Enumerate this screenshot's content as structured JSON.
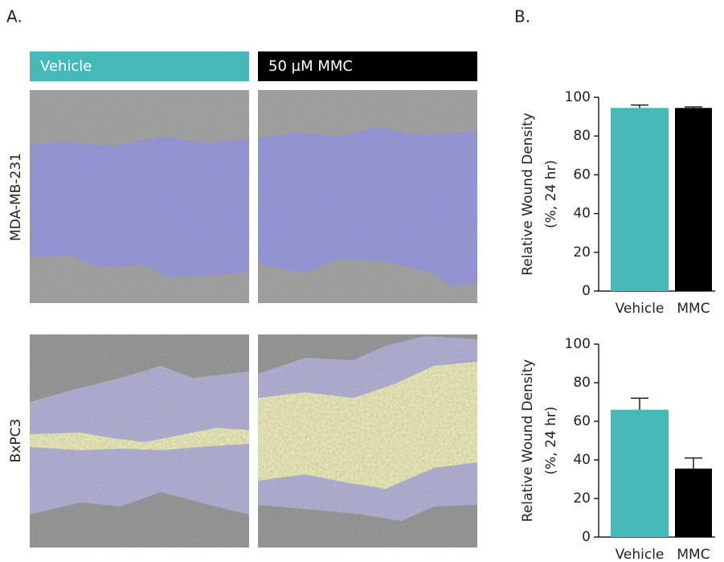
{
  "panel_a": {
    "label": "A.",
    "columns": [
      "Vehicle",
      "50 µM MMC"
    ],
    "rows": [
      "MDA-MB-231",
      "BxPC3"
    ]
  },
  "panel_b": {
    "label": "B."
  },
  "chart_data": [
    {
      "type": "bar",
      "categories": [
        "Vehicle",
        "MMC"
      ],
      "values": [
        94.5,
        94.5
      ],
      "errors": [
        1.5,
        0.5
      ],
      "colors": [
        "#45b8b8",
        "#000000"
      ],
      "ylabel": [
        "Relative Wound Density",
        "(%, 24 hr)"
      ],
      "ylim": [
        0,
        100
      ],
      "yticks": [
        0,
        20,
        40,
        60,
        80,
        100
      ]
    },
    {
      "type": "bar",
      "categories": [
        "Vehicle",
        "MMC"
      ],
      "values": [
        66,
        35.5
      ],
      "errors": [
        6,
        5.5
      ],
      "colors": [
        "#45b8b8",
        "#000000"
      ],
      "ylabel": [
        "Relative Wound Density",
        "(%, 24 hr)"
      ],
      "ylim": [
        0,
        100
      ],
      "yticks": [
        0,
        20,
        40,
        60,
        80,
        100
      ]
    }
  ]
}
